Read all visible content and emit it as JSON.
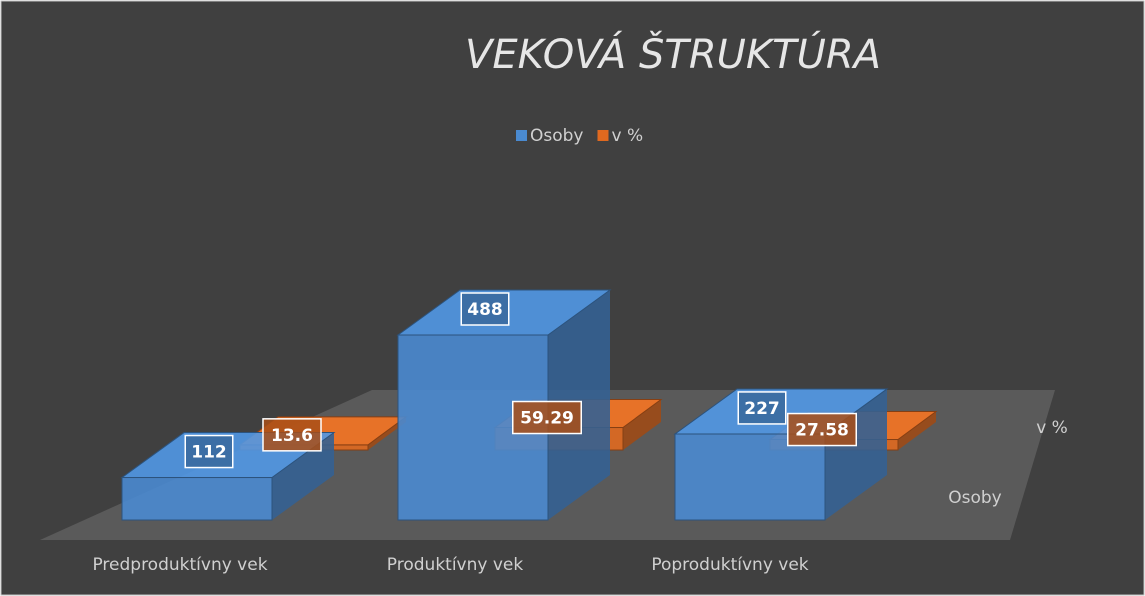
{
  "chart_data": {
    "type": "bar3d",
    "title": "VEKOVÁ ŠTRUKTÚRA",
    "categories": [
      "Predproduktívny vek",
      "Produktívny vek",
      "Poproduktívny vek"
    ],
    "series": [
      {
        "name": "Osoby",
        "color": "#4a8ad0",
        "values": [
          112,
          488,
          227
        ]
      },
      {
        "name": "v %",
        "color": "#e0691f",
        "values": [
          13.6,
          59.29,
          27.58
        ]
      }
    ],
    "legend": "top"
  }
}
